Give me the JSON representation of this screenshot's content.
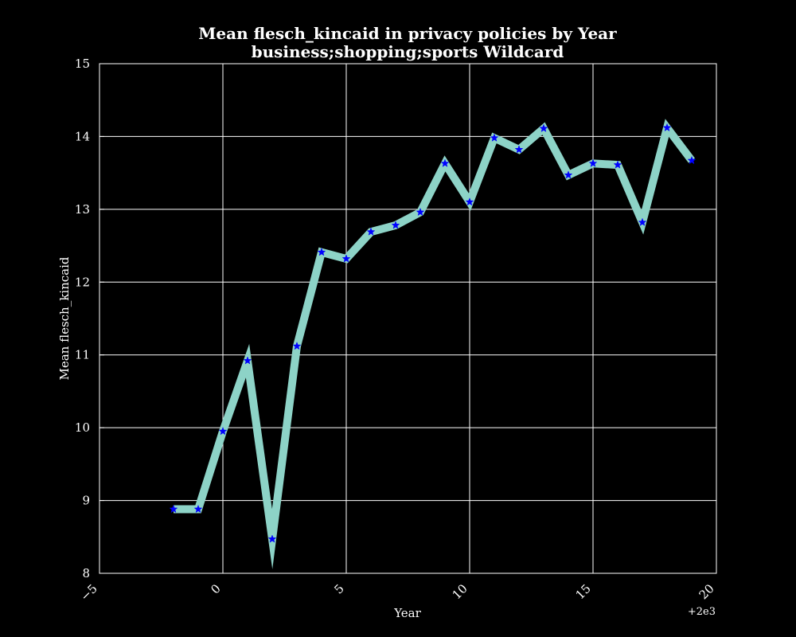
{
  "chart_data": {
    "type": "line",
    "title": "Mean flesch_kincaid in privacy policies by Year",
    "subtitle": "business;shopping;sports Wildcard",
    "xlabel": "Year",
    "ylabel": "Mean flesch_kincaid",
    "x_offset_label": "+2e3",
    "xlim": [
      -5,
      20
    ],
    "ylim": [
      8,
      15
    ],
    "xticks": [
      -5,
      0,
      5,
      10,
      15,
      20
    ],
    "yticks": [
      8,
      9,
      10,
      11,
      12,
      13,
      14,
      15
    ],
    "grid": true,
    "legend": "none",
    "series": [
      {
        "x": [
          -2,
          -1,
          0,
          1,
          2,
          3,
          4,
          5,
          6,
          7,
          8,
          9,
          10,
          11,
          12,
          13,
          14,
          15,
          16,
          17,
          18,
          19
        ],
        "values": [
          8.88,
          8.88,
          9.95,
          10.92,
          8.47,
          11.12,
          12.41,
          12.32,
          12.69,
          12.78,
          12.96,
          13.63,
          13.1,
          13.98,
          13.82,
          14.11,
          13.47,
          13.63,
          13.61,
          12.82,
          14.12,
          13.67
        ],
        "line_color": "#8dd3c7",
        "marker_color": "#0000ff",
        "marker": "star"
      }
    ],
    "colors": {
      "background": "#000000",
      "axes": "#ffffff",
      "grid": "#ffffff",
      "text": "#ffffff"
    }
  }
}
